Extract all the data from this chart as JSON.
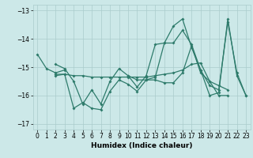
{
  "title": "",
  "xlabel": "Humidex (Indice chaleur)",
  "bg_color": "#cce8e8",
  "grid_color": "#aacccc",
  "line_color": "#2e7b6b",
  "xlim": [
    -0.5,
    23.5
  ],
  "ylim": [
    -17.2,
    -12.8
  ],
  "yticks": [
    -17,
    -16,
    -15,
    -14,
    -13
  ],
  "xticks": [
    0,
    1,
    2,
    3,
    4,
    5,
    6,
    7,
    8,
    9,
    10,
    11,
    12,
    13,
    14,
    15,
    16,
    17,
    18,
    19,
    20,
    21,
    22,
    23
  ],
  "line1_x": [
    0,
    1,
    2,
    3
  ],
  "line1_y": [
    -14.55,
    -15.05,
    -15.2,
    -15.1
  ],
  "line2_x": [
    2,
    3,
    4,
    5,
    6,
    7,
    8,
    9,
    10,
    11,
    12,
    13,
    14,
    15,
    16,
    17,
    18,
    19,
    20,
    21
  ],
  "line2_y": [
    -15.25,
    -15.25,
    -16.45,
    -16.25,
    -16.45,
    -16.5,
    -15.85,
    -15.45,
    -15.6,
    -15.85,
    -15.45,
    -15.45,
    -15.55,
    -15.55,
    -15.2,
    -14.25,
    -15.2,
    -15.5,
    -16.0,
    -16.0
  ],
  "line3_x": [
    2,
    3,
    4,
    5,
    6,
    7,
    8,
    9,
    10,
    11,
    12,
    13,
    14,
    15,
    16,
    17,
    18,
    19,
    20,
    21
  ],
  "line3_y": [
    -15.3,
    -15.25,
    -15.3,
    -15.3,
    -15.35,
    -15.35,
    -15.35,
    -15.35,
    -15.35,
    -15.35,
    -15.35,
    -15.3,
    -15.25,
    -15.2,
    -15.1,
    -14.9,
    -14.85,
    -15.5,
    -15.65,
    -15.8
  ],
  "line4_x": [
    2,
    3,
    4,
    5,
    6,
    7,
    8,
    9,
    10,
    11,
    12,
    13,
    14,
    15,
    16,
    17,
    18,
    19,
    20,
    21,
    22,
    23
  ],
  "line4_y": [
    -14.9,
    -15.05,
    -15.5,
    -16.3,
    -15.8,
    -16.3,
    -15.5,
    -15.05,
    -15.3,
    -15.7,
    -15.3,
    -14.2,
    -14.15,
    -13.55,
    -13.3,
    -14.3,
    -15.1,
    -16.0,
    -15.9,
    -13.3,
    -15.3,
    -16.0
  ],
  "line5_x": [
    10,
    11,
    12,
    13,
    14,
    15,
    16,
    17,
    18,
    19,
    20,
    21,
    22,
    23
  ],
  "line5_y": [
    -15.3,
    -15.45,
    -15.45,
    -15.35,
    -14.15,
    -14.15,
    -13.7,
    -14.2,
    -15.1,
    -15.65,
    -15.8,
    -13.4,
    -15.2,
    -16.0
  ]
}
